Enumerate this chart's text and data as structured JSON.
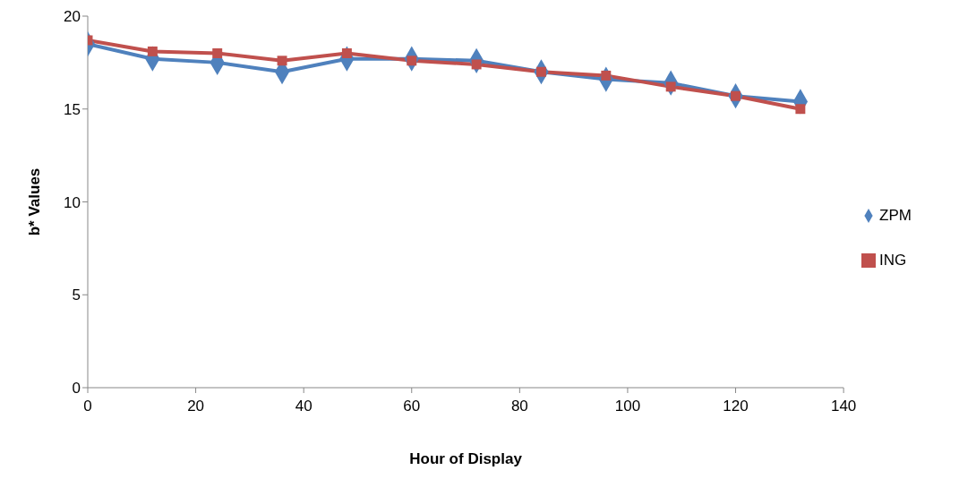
{
  "chart_data": {
    "type": "line",
    "xlabel": "Hour of Display",
    "ylabel": "b* Values",
    "x": [
      0,
      12,
      24,
      36,
      48,
      60,
      72,
      84,
      96,
      108,
      120,
      132
    ],
    "series": [
      {
        "name": "ZPM",
        "color": "#4f81bd",
        "marker": "diamond",
        "values": [
          18.5,
          17.7,
          17.5,
          17.0,
          17.7,
          17.7,
          17.6,
          17.0,
          16.6,
          16.4,
          15.7,
          15.4
        ]
      },
      {
        "name": "ING",
        "color": "#c0504d",
        "marker": "square",
        "values": [
          18.7,
          18.1,
          18.0,
          17.6,
          18.0,
          17.6,
          17.4,
          17.0,
          16.8,
          16.2,
          15.7,
          15.0
        ]
      }
    ],
    "xlim": [
      0,
      140
    ],
    "xticks": [
      0,
      20,
      40,
      60,
      80,
      100,
      120,
      140
    ],
    "ylim": [
      0,
      20
    ],
    "yticks": [
      0,
      5,
      10,
      15,
      20
    ],
    "grid": false,
    "legend": "right",
    "line_style": "solid"
  }
}
